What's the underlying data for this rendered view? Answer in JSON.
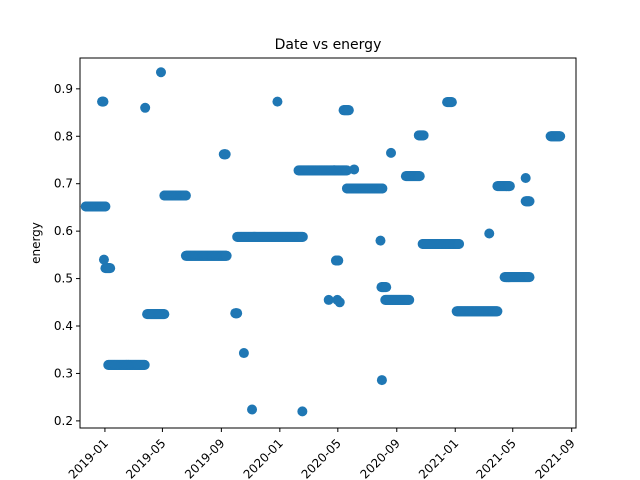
{
  "chart_data": {
    "type": "scatter",
    "title": "Date vs energy",
    "xlabel": "",
    "ylabel": "energy",
    "x_type": "date",
    "xlim": [
      "2018-11-10",
      "2021-09-10"
    ],
    "ylim": [
      0.185,
      0.965
    ],
    "x_ticks": [
      "2019-01",
      "2019-05",
      "2019-09",
      "2020-01",
      "2020-05",
      "2020-09",
      "2021-01",
      "2021-05",
      "2021-09"
    ],
    "x_tick_dates": [
      "2019-01-01",
      "2019-05-01",
      "2019-09-01",
      "2020-01-01",
      "2020-05-01",
      "2020-09-01",
      "2021-01-01",
      "2021-05-01",
      "2021-09-01"
    ],
    "y_ticks": [
      0.2,
      0.3,
      0.4,
      0.5,
      0.6,
      0.7,
      0.8,
      0.9
    ],
    "y_tick_labels": [
      "0.2",
      "0.3",
      "0.4",
      "0.5",
      "0.6",
      "0.7",
      "0.8",
      "0.9"
    ],
    "marker_color": "#1f77b4",
    "grid": false,
    "segments": [
      {
        "x_start": "2018-11-22",
        "x_end": "2018-12-27",
        "y": 0.652
      },
      {
        "x_start": "2018-12-29",
        "x_end": "2019-01-02",
        "y": 0.652
      },
      {
        "x_start": "2018-12-26",
        "x_end": "2018-12-29",
        "y": 0.873
      },
      {
        "x_start": "2019-01-02",
        "x_end": "2019-01-12",
        "y": 0.522
      },
      {
        "x_start": "2019-01-08",
        "x_end": "2019-03-25",
        "y": 0.318
      },
      {
        "x_start": "2019-03-30",
        "x_end": "2019-05-05",
        "y": 0.425
      },
      {
        "x_start": "2019-05-05",
        "x_end": "2019-06-19",
        "y": 0.675
      },
      {
        "x_start": "2019-06-19",
        "x_end": "2019-09-12",
        "y": 0.548
      },
      {
        "x_start": "2019-09-06",
        "x_end": "2019-09-10",
        "y": 0.762
      },
      {
        "x_start": "2019-09-30",
        "x_end": "2019-10-04",
        "y": 0.427
      },
      {
        "x_start": "2019-10-04",
        "x_end": "2020-02-18",
        "y": 0.588
      },
      {
        "x_start": "2020-02-09",
        "x_end": "2020-04-25",
        "y": 0.728
      },
      {
        "x_start": "2020-04-22",
        "x_end": "2020-05-20",
        "y": 0.728
      },
      {
        "x_start": "2020-04-27",
        "x_end": "2020-05-02",
        "y": 0.538
      },
      {
        "x_start": "2020-05-13",
        "x_end": "2020-05-24",
        "y": 0.855
      },
      {
        "x_start": "2020-05-20",
        "x_end": "2020-08-02",
        "y": 0.69
      },
      {
        "x_start": "2020-07-31",
        "x_end": "2020-08-10",
        "y": 0.482
      },
      {
        "x_start": "2020-08-08",
        "x_end": "2020-09-27",
        "y": 0.455
      },
      {
        "x_start": "2020-09-20",
        "x_end": "2020-10-19",
        "y": 0.716
      },
      {
        "x_start": "2020-10-17",
        "x_end": "2020-10-27",
        "y": 0.802
      },
      {
        "x_start": "2020-10-25",
        "x_end": "2021-01-09",
        "y": 0.573
      },
      {
        "x_start": "2020-12-15",
        "x_end": "2020-12-25",
        "y": 0.872
      },
      {
        "x_start": "2021-01-04",
        "x_end": "2021-03-30",
        "y": 0.431
      },
      {
        "x_start": "2021-03-30",
        "x_end": "2021-04-25",
        "y": 0.695
      },
      {
        "x_start": "2021-04-14",
        "x_end": "2021-06-05",
        "y": 0.503
      },
      {
        "x_start": "2021-05-28",
        "x_end": "2021-06-05",
        "y": 0.663
      },
      {
        "x_start": "2021-07-19",
        "x_end": "2021-08-08",
        "y": 0.8
      }
    ],
    "points": [
      {
        "x": "2018-12-30",
        "y": 0.54
      },
      {
        "x": "2019-03-26",
        "y": 0.86
      },
      {
        "x": "2019-04-28",
        "y": 0.935
      },
      {
        "x": "2019-10-18",
        "y": 0.343
      },
      {
        "x": "2019-11-04",
        "y": 0.224
      },
      {
        "x": "2019-12-27",
        "y": 0.873
      },
      {
        "x": "2020-02-17",
        "y": 0.22
      },
      {
        "x": "2020-04-12",
        "y": 0.455
      },
      {
        "x": "2020-04-30",
        "y": 0.455
      },
      {
        "x": "2020-05-05",
        "y": 0.45
      },
      {
        "x": "2020-06-04",
        "y": 0.73
      },
      {
        "x": "2020-07-29",
        "y": 0.58
      },
      {
        "x": "2020-08-01",
        "y": 0.286
      },
      {
        "x": "2020-08-20",
        "y": 0.765
      },
      {
        "x": "2021-03-13",
        "y": 0.595
      },
      {
        "x": "2021-05-28",
        "y": 0.712
      }
    ]
  }
}
